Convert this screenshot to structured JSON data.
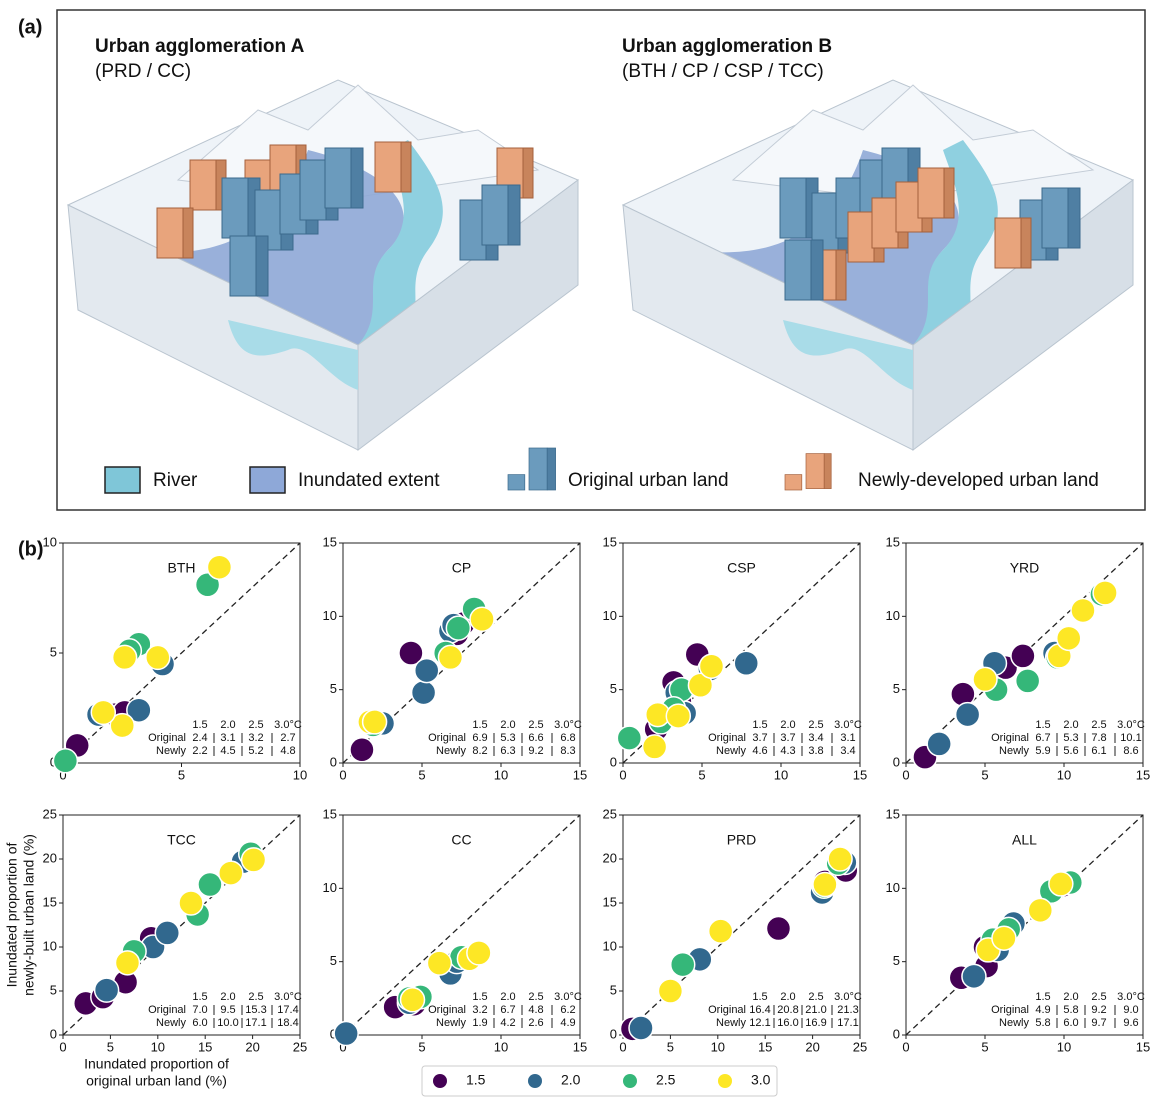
{
  "panel_labels": [
    "(a)",
    "(b)"
  ],
  "panel_a": {
    "scenes": [
      {
        "title": "Urban agglomeration A",
        "subtitle": "(PRD / CC)"
      },
      {
        "title": "Urban agglomeration B",
        "subtitle": "(BTH / CP / CSP / TCC)"
      }
    ],
    "legend": [
      "River",
      "Inundated extent",
      "Original urban land",
      "Newly-developed urban land"
    ]
  },
  "legend": {
    "items": [
      {
        "name": "1.5",
        "color": "#440154"
      },
      {
        "name": "2.0",
        "color": "#31688e"
      },
      {
        "name": "2.5",
        "color": "#35b779"
      },
      {
        "name": "3.0",
        "color": "#fde725"
      }
    ]
  },
  "chart_data": [
    {
      "type": "scatter",
      "title": "BTH",
      "xlim": [
        0,
        10
      ],
      "ylim": [
        0,
        10
      ],
      "xticks": [
        0,
        5,
        10
      ],
      "yticks": [
        0,
        5,
        10
      ],
      "series": [
        {
          "color": "#440154",
          "x": [
            0.6,
            2.4,
            2.2,
            2.6
          ],
          "values": [
            0.8,
            2.2,
            2.2,
            2.3
          ]
        },
        {
          "color": "#31688e",
          "x": [
            1.5,
            3.2,
            2.7,
            4.2
          ],
          "values": [
            2.2,
            2.4,
            5.0,
            4.5
          ]
        },
        {
          "color": "#35b779",
          "x": [
            0.1,
            3.2,
            6.1,
            2.8
          ],
          "values": [
            0.1,
            5.4,
            8.1,
            5.1
          ]
        },
        {
          "color": "#fde725",
          "x": [
            2.5,
            1.7,
            2.6,
            4.0,
            6.6
          ],
          "values": [
            1.7,
            2.3,
            4.8,
            4.8,
            8.9
          ]
        }
      ],
      "table": {
        "header": [
          "1.5",
          "2.0",
          "2.5",
          "3.0°C"
        ],
        "rows": [
          {
            "label": "Original",
            "values": [
              "2.4",
              "3.1",
              "3.2",
              "2.7"
            ]
          },
          {
            "label": "Newly",
            "values": [
              "2.2",
              "4.5",
              "5.2",
              "4.8"
            ]
          }
        ]
      }
    },
    {
      "type": "scatter",
      "title": "CP",
      "xlim": [
        0,
        15
      ],
      "ylim": [
        0,
        15
      ],
      "xticks": [
        0,
        5,
        10,
        15
      ],
      "yticks": [
        0,
        5,
        10,
        15
      ],
      "series": [
        {
          "color": "#440154",
          "x": [
            1.2,
            4.3,
            7.2,
            7.6,
            2.2
          ],
          "values": [
            0.9,
            7.5,
            8.8,
            9.5,
            2.7
          ]
        },
        {
          "color": "#31688e",
          "x": [
            2.5,
            5.1,
            5.3,
            6.8,
            7.0
          ],
          "values": [
            2.7,
            4.8,
            6.3,
            9.0,
            9.4
          ]
        },
        {
          "color": "#35b779",
          "x": [
            6.5,
            7.3,
            8.3,
            1.9
          ],
          "values": [
            7.5,
            9.2,
            10.5,
            2.6
          ]
        },
        {
          "color": "#fde725",
          "x": [
            1.7,
            6.8,
            8.8,
            2.0
          ],
          "values": [
            2.8,
            7.2,
            9.8,
            2.8
          ]
        }
      ],
      "table": {
        "header": [
          "1.5",
          "2.0",
          "2.5",
          "3.0°C"
        ],
        "rows": [
          {
            "label": "Original",
            "values": [
              "6.9",
              "5.3",
              "6.6",
              "6.8"
            ]
          },
          {
            "label": "Newly",
            "values": [
              "8.2",
              "6.3",
              "9.2",
              "8.3"
            ]
          }
        ]
      }
    },
    {
      "type": "scatter",
      "title": "CSP",
      "xlim": [
        0,
        15
      ],
      "ylim": [
        0,
        15
      ],
      "xticks": [
        0,
        5,
        10,
        15
      ],
      "yticks": [
        0,
        5,
        10,
        15
      ],
      "series": [
        {
          "color": "#440154",
          "x": [
            3.2,
            4.7,
            2.1,
            3.6
          ],
          "values": [
            5.5,
            7.4,
            2.3,
            4.2
          ]
        },
        {
          "color": "#31688e",
          "x": [
            7.8,
            3.9,
            3.4,
            5.5
          ],
          "values": [
            6.8,
            3.4,
            4.8,
            6.4
          ]
        },
        {
          "color": "#35b779",
          "x": [
            0.4,
            3.7,
            2.4,
            3.2
          ],
          "values": [
            1.7,
            5.0,
            2.8,
            3.7
          ]
        },
        {
          "color": "#fde725",
          "x": [
            2.0,
            2.2,
            4.9,
            5.6,
            3.5
          ],
          "values": [
            1.1,
            3.3,
            5.3,
            6.6,
            3.2
          ]
        }
      ],
      "table": {
        "header": [
          "1.5",
          "2.0",
          "2.5",
          "3.0°C"
        ],
        "rows": [
          {
            "label": "Original",
            "values": [
              "3.7",
              "3.7",
              "3.4",
              "3.1"
            ]
          },
          {
            "label": "Newly",
            "values": [
              "4.6",
              "4.3",
              "3.8",
              "3.4"
            ]
          }
        ]
      }
    },
    {
      "type": "scatter",
      "title": "YRD",
      "xlim": [
        0,
        15
      ],
      "ylim": [
        0,
        15
      ],
      "xticks": [
        0,
        5,
        10,
        15
      ],
      "yticks": [
        0,
        5,
        10,
        15
      ],
      "series": [
        {
          "color": "#440154",
          "x": [
            1.2,
            3.6,
            6.3,
            7.4
          ],
          "values": [
            0.4,
            4.7,
            6.5,
            7.3
          ]
        },
        {
          "color": "#31688e",
          "x": [
            2.1,
            3.9,
            5.6,
            9.4
          ],
          "values": [
            1.3,
            3.3,
            6.8,
            7.5
          ]
        },
        {
          "color": "#35b779",
          "x": [
            5.7,
            7.7,
            9.6,
            12.4
          ],
          "values": [
            5.0,
            5.6,
            7.2,
            11.5
          ]
        },
        {
          "color": "#fde725",
          "x": [
            5.0,
            9.7,
            10.3,
            11.2,
            12.6
          ],
          "values": [
            5.7,
            7.3,
            8.5,
            10.4,
            11.6
          ]
        }
      ],
      "table": {
        "header": [
          "1.5",
          "2.0",
          "2.5",
          "3.0°C"
        ],
        "rows": [
          {
            "label": "Original",
            "values": [
              "6.7",
              "5.3",
              "7.8",
              "10.1"
            ]
          },
          {
            "label": "Newly",
            "values": [
              "5.9",
              "5.6",
              "6.1",
              "8.6"
            ]
          }
        ]
      }
    },
    {
      "type": "scatter",
      "title": "TCC",
      "xlim": [
        0,
        25
      ],
      "ylim": [
        0,
        25
      ],
      "xticks": [
        0,
        5,
        10,
        15,
        20,
        25
      ],
      "yticks": [
        0,
        5,
        10,
        15,
        20,
        25
      ],
      "xlabel": [
        "Inundated proportion of",
        "original urban land (%)"
      ],
      "ylabel": [
        "Inundated proportion of",
        "newly-built urban land (%)"
      ],
      "series": [
        {
          "color": "#440154",
          "x": [
            2.4,
            6.6,
            9.3,
            4.2
          ],
          "values": [
            3.6,
            6.0,
            11.0,
            4.3
          ]
        },
        {
          "color": "#31688e",
          "x": [
            4.6,
            9.5,
            11.0,
            19.0
          ],
          "values": [
            5.1,
            10.0,
            11.6,
            19.7
          ]
        },
        {
          "color": "#35b779",
          "x": [
            7.5,
            14.2,
            15.5,
            19.8
          ],
          "values": [
            9.5,
            13.7,
            17.1,
            20.6
          ]
        },
        {
          "color": "#fde725",
          "x": [
            6.8,
            13.5,
            17.7,
            20.1
          ],
          "values": [
            8.2,
            15.0,
            18.4,
            19.9
          ]
        }
      ],
      "table": {
        "header": [
          "1.5",
          "2.0",
          "2.5",
          "3.0°C"
        ],
        "rows": [
          {
            "label": "Original",
            "values": [
              "7.0",
              "9.5",
              "15.3",
              "17.4"
            ]
          },
          {
            "label": "Newly",
            "values": [
              "6.0",
              "10.0",
              "17.1",
              "18.4"
            ]
          }
        ]
      }
    },
    {
      "type": "scatter",
      "title": "CC",
      "xlim": [
        0,
        15
      ],
      "ylim": [
        0,
        15
      ],
      "xticks": [
        0,
        5,
        10,
        15
      ],
      "yticks": [
        0,
        5,
        10,
        15
      ],
      "series": [
        {
          "color": "#440154",
          "x": [
            3.3,
            4.5,
            6.9
          ],
          "values": [
            1.9,
            2.1,
            4.4
          ]
        },
        {
          "color": "#31688e",
          "x": [
            0.2,
            4.2,
            6.8,
            7.2
          ],
          "values": [
            0.1,
            2.2,
            4.2,
            5.0
          ]
        },
        {
          "color": "#35b779",
          "x": [
            4.9,
            7.5,
            4.2
          ],
          "values": [
            2.6,
            5.3,
            2.5
          ]
        },
        {
          "color": "#fde725",
          "x": [
            6.1,
            8.0,
            8.6,
            4.4
          ],
          "values": [
            4.9,
            5.2,
            5.6,
            2.4
          ]
        }
      ],
      "table": {
        "header": [
          "1.5",
          "2.0",
          "2.5",
          "3.0°C"
        ],
        "rows": [
          {
            "label": "Original",
            "values": [
              "3.2",
              "6.7",
              "4.8",
              "6.2"
            ]
          },
          {
            "label": "Newly",
            "values": [
              "1.9",
              "4.2",
              "2.6",
              "4.9"
            ]
          }
        ]
      }
    },
    {
      "type": "scatter",
      "title": "PRD",
      "xlim": [
        0,
        25
      ],
      "ylim": [
        0,
        25
      ],
      "xticks": [
        0,
        5,
        10,
        15,
        20,
        25
      ],
      "yticks": [
        0,
        5,
        10,
        15,
        20,
        25
      ],
      "series": [
        {
          "color": "#440154",
          "x": [
            1.0,
            16.4,
            23.5,
            21.3
          ],
          "values": [
            0.7,
            12.1,
            18.7,
            17.4
          ]
        },
        {
          "color": "#31688e",
          "x": [
            1.9,
            8.1,
            21.0,
            23.4
          ],
          "values": [
            0.8,
            8.6,
            16.2,
            19.6
          ]
        },
        {
          "color": "#35b779",
          "x": [
            6.3,
            21.2,
            22.7
          ],
          "values": [
            8.0,
            16.9,
            19.5
          ]
        },
        {
          "color": "#fde725",
          "x": [
            5.0,
            10.3,
            21.3,
            22.9
          ],
          "values": [
            5.0,
            11.8,
            17.1,
            20.0
          ]
        }
      ],
      "table": {
        "header": [
          "1.5",
          "2.0",
          "2.5",
          "3.0°C"
        ],
        "rows": [
          {
            "label": "Original",
            "values": [
              "16.4",
              "20.8",
              "21.0",
              "21.3"
            ]
          },
          {
            "label": "Newly",
            "values": [
              "12.1",
              "16.0",
              "16.9",
              "17.1"
            ]
          }
        ]
      }
    },
    {
      "type": "scatter",
      "title": "ALL",
      "xlim": [
        0,
        15
      ],
      "ylim": [
        0,
        15
      ],
      "xticks": [
        0,
        5,
        10,
        15
      ],
      "yticks": [
        0,
        5,
        10,
        15
      ],
      "series": [
        {
          "color": "#440154",
          "x": [
            3.5,
            5.1,
            5.0,
            9.9
          ],
          "values": [
            3.9,
            4.7,
            6.0,
            10.2
          ]
        },
        {
          "color": "#31688e",
          "x": [
            4.3,
            5.8,
            6.8,
            9.3
          ],
          "values": [
            4.0,
            5.8,
            7.6,
            9.8
          ]
        },
        {
          "color": "#35b779",
          "x": [
            5.5,
            9.2,
            10.4,
            6.5
          ],
          "values": [
            6.5,
            9.8,
            10.4,
            7.2
          ]
        },
        {
          "color": "#fde725",
          "x": [
            5.2,
            8.5,
            9.8,
            6.2
          ],
          "values": [
            5.8,
            8.5,
            10.3,
            6.6
          ]
        }
      ],
      "table": {
        "header": [
          "1.5",
          "2.0",
          "2.5",
          "3.0°C"
        ],
        "rows": [
          {
            "label": "Original",
            "values": [
              "4.9",
              "5.8",
              "9.2",
              "9.0"
            ]
          },
          {
            "label": "Newly",
            "values": [
              "5.8",
              "6.0",
              "9.7",
              "9.6"
            ]
          }
        ]
      }
    }
  ]
}
